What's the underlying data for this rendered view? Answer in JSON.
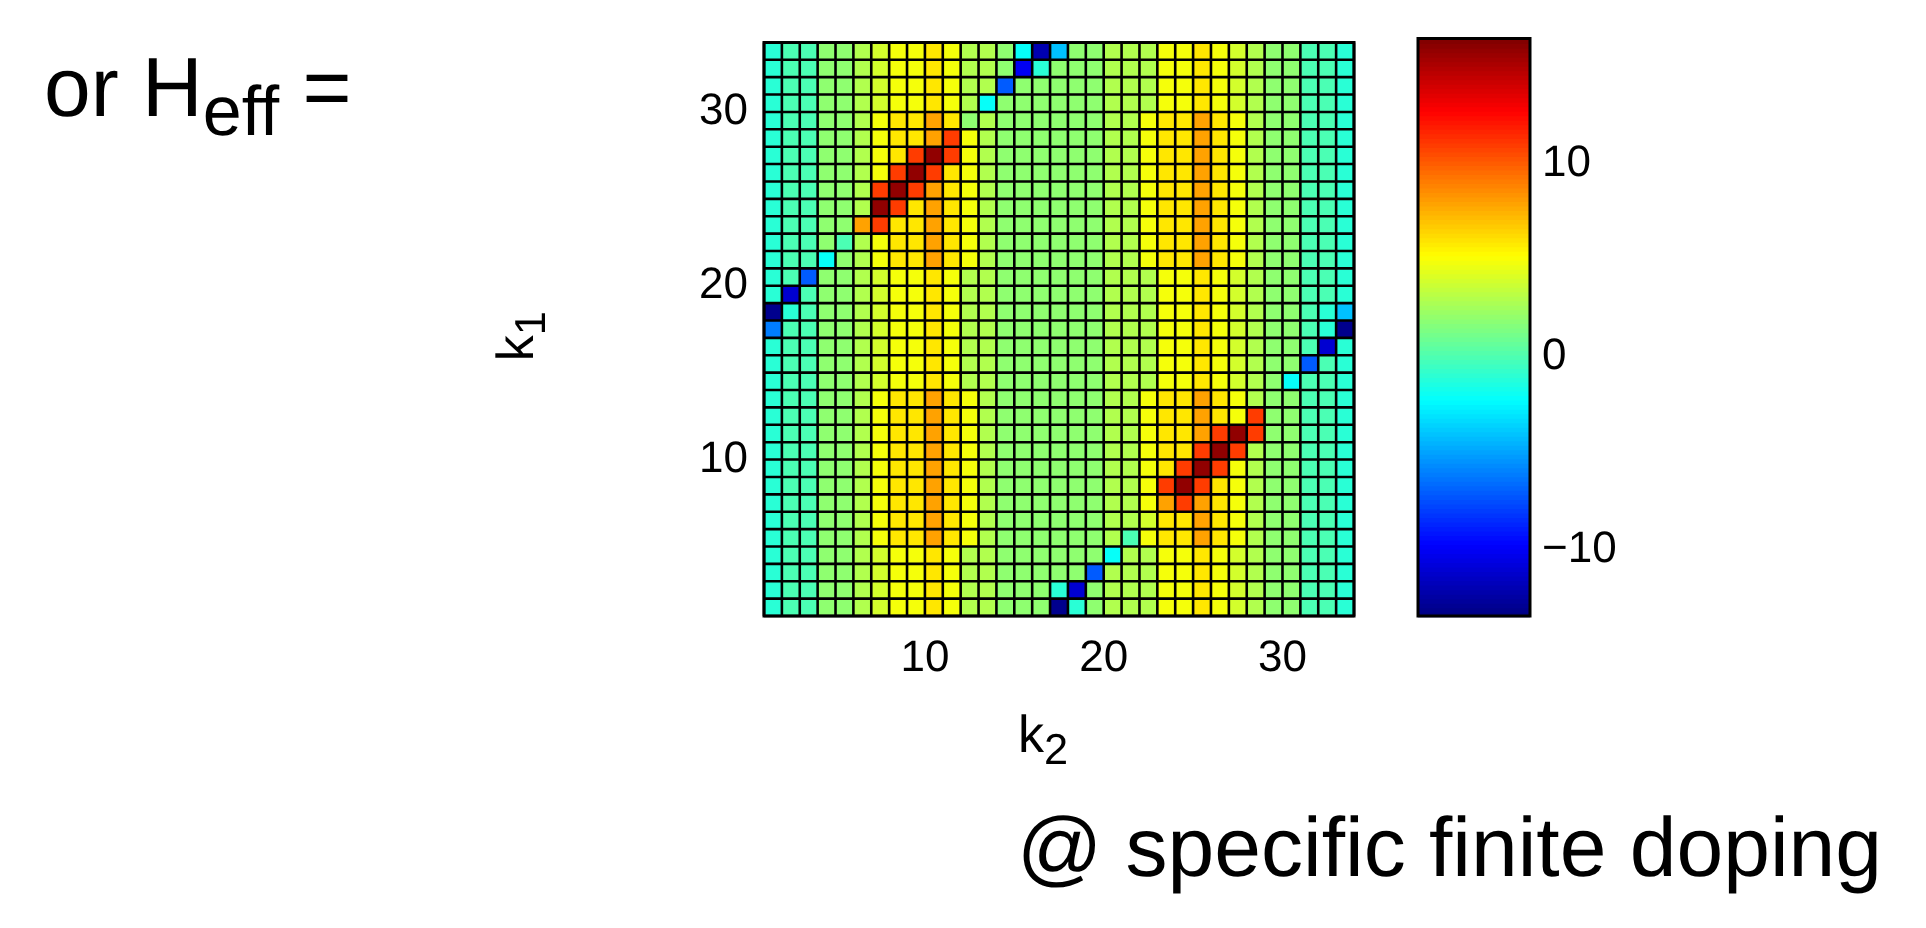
{
  "chart_data": {
    "type": "heatmap",
    "xlabel": "k$_{2}$",
    "ylabel": "k$_{1}$",
    "annotations": [
      "or H$_{eff}$ =",
      "@ specific finite doping"
    ],
    "grid": true,
    "xlim": [
      1,
      34
    ],
    "ylim": [
      1,
      34
    ],
    "xticks": [
      10,
      20,
      30
    ],
    "yticks": [
      10,
      20,
      30
    ],
    "clim": [
      -13.4,
      16.5
    ],
    "cticks": [
      {
        "value": -10,
        "label": "−10"
      },
      0,
      10
    ],
    "cells": [
      [
        -1,
        0,
        0,
        2,
        2,
        3,
        4,
        5,
        5,
        6,
        5,
        3,
        3,
        2,
        -2,
        -12,
        -4,
        2,
        2,
        3,
        3,
        3,
        5,
        5,
        6,
        5,
        4,
        3,
        2,
        2,
        0,
        0,
        -1
      ],
      [
        -1,
        0,
        0,
        2,
        2,
        3,
        4,
        5,
        5,
        6,
        5,
        3,
        3,
        2,
        -10,
        -1,
        2,
        2,
        2,
        3,
        3,
        3,
        5,
        5,
        6,
        5,
        4,
        3,
        2,
        2,
        0,
        0,
        -1
      ],
      [
        -1,
        0,
        0,
        2,
        2,
        3,
        4,
        5,
        5,
        6,
        5,
        3,
        3,
        -7,
        2,
        2,
        2,
        2,
        2,
        3,
        3,
        3,
        5,
        5,
        6,
        5,
        4,
        3,
        2,
        2,
        0,
        0,
        -1
      ],
      [
        -1,
        0,
        0,
        2,
        2,
        3,
        4,
        5,
        5,
        6,
        5,
        3,
        -2,
        2,
        2,
        2,
        2,
        2,
        2,
        3,
        3,
        3,
        5,
        5,
        6,
        5,
        4,
        3,
        2,
        2,
        0,
        0,
        -1
      ],
      [
        -1,
        0,
        0,
        2,
        2,
        3,
        5,
        6,
        6,
        8,
        6,
        2,
        3,
        2,
        2,
        2,
        2,
        2,
        2,
        3,
        3,
        5,
        6,
        6,
        8,
        6,
        5,
        3,
        2,
        2,
        0,
        0,
        -1
      ],
      [
        -1,
        0,
        0,
        2,
        2,
        3,
        5,
        6,
        6,
        8,
        11,
        5,
        3,
        2,
        2,
        2,
        2,
        2,
        2,
        3,
        3,
        5,
        6,
        6,
        8,
        6,
        5,
        3,
        2,
        2,
        0,
        0,
        -1
      ],
      [
        -1,
        0,
        0,
        2,
        2,
        3,
        5,
        6,
        11,
        16,
        11,
        5,
        3,
        2,
        2,
        2,
        2,
        2,
        2,
        3,
        3,
        5,
        6,
        6,
        8,
        6,
        5,
        3,
        2,
        2,
        0,
        0,
        -1
      ],
      [
        -1,
        0,
        0,
        2,
        2,
        3,
        5,
        11,
        16,
        11,
        6,
        5,
        3,
        2,
        2,
        2,
        2,
        2,
        2,
        3,
        3,
        5,
        6,
        6,
        8,
        6,
        5,
        3,
        2,
        2,
        0,
        0,
        -1
      ],
      [
        -1,
        0,
        0,
        2,
        2,
        3,
        11,
        16,
        11,
        8,
        6,
        5,
        3,
        2,
        2,
        2,
        2,
        2,
        2,
        3,
        3,
        5,
        6,
        6,
        8,
        6,
        5,
        3,
        2,
        2,
        0,
        0,
        -1
      ],
      [
        -1,
        0,
        0,
        2,
        2,
        3,
        16,
        11,
        6,
        8,
        6,
        5,
        3,
        2,
        2,
        2,
        2,
        2,
        2,
        3,
        3,
        5,
        6,
        6,
        8,
        6,
        5,
        3,
        2,
        2,
        0,
        0,
        -1
      ],
      [
        -1,
        0,
        0,
        2,
        2,
        8,
        11,
        6,
        6,
        8,
        6,
        5,
        3,
        2,
        2,
        2,
        2,
        2,
        2,
        3,
        3,
        5,
        6,
        6,
        8,
        6,
        5,
        3,
        2,
        2,
        0,
        0,
        -1
      ],
      [
        -1,
        0,
        0,
        2,
        0,
        3,
        5,
        6,
        6,
        8,
        6,
        5,
        3,
        2,
        2,
        2,
        2,
        2,
        2,
        3,
        3,
        5,
        6,
        6,
        8,
        6,
        5,
        3,
        2,
        2,
        0,
        0,
        -1
      ],
      [
        -1,
        0,
        0,
        -2,
        2,
        3,
        5,
        6,
        6,
        8,
        6,
        5,
        3,
        2,
        2,
        2,
        2,
        2,
        2,
        3,
        3,
        5,
        6,
        6,
        8,
        6,
        5,
        3,
        2,
        2,
        0,
        0,
        -1
      ],
      [
        -1,
        0,
        -7,
        2,
        2,
        3,
        4,
        5,
        5,
        6,
        5,
        3,
        3,
        2,
        2,
        2,
        2,
        2,
        2,
        3,
        3,
        3,
        5,
        5,
        6,
        5,
        4,
        3,
        2,
        2,
        0,
        0,
        -1
      ],
      [
        -1,
        -11,
        0,
        2,
        2,
        3,
        4,
        5,
        5,
        6,
        5,
        3,
        3,
        2,
        2,
        2,
        2,
        2,
        2,
        3,
        3,
        3,
        5,
        5,
        6,
        5,
        4,
        3,
        2,
        2,
        0,
        0,
        -1
      ],
      [
        -13,
        -1,
        0,
        2,
        2,
        3,
        4,
        5,
        5,
        6,
        5,
        3,
        3,
        2,
        2,
        2,
        2,
        2,
        2,
        3,
        3,
        3,
        5,
        5,
        6,
        5,
        4,
        3,
        2,
        2,
        0,
        -1,
        -4
      ],
      [
        -6,
        0,
        0,
        2,
        2,
        3,
        4,
        5,
        5,
        6,
        5,
        3,
        3,
        2,
        2,
        2,
        2,
        2,
        2,
        3,
        3,
        3,
        5,
        5,
        6,
        5,
        4,
        3,
        2,
        2,
        0,
        -1,
        -13
      ],
      [
        -1,
        0,
        0,
        2,
        2,
        3,
        4,
        5,
        5,
        6,
        5,
        3,
        3,
        2,
        2,
        2,
        2,
        2,
        2,
        3,
        3,
        3,
        5,
        5,
        6,
        5,
        4,
        3,
        2,
        2,
        0,
        -11,
        -1
      ],
      [
        -1,
        0,
        0,
        2,
        2,
        3,
        4,
        5,
        5,
        6,
        5,
        3,
        3,
        2,
        2,
        2,
        2,
        2,
        2,
        3,
        3,
        3,
        5,
        5,
        6,
        5,
        4,
        3,
        2,
        2,
        -7,
        0,
        -1
      ],
      [
        -1,
        0,
        0,
        2,
        2,
        3,
        4,
        5,
        5,
        6,
        5,
        3,
        3,
        2,
        2,
        2,
        2,
        2,
        2,
        3,
        3,
        3,
        5,
        5,
        6,
        5,
        4,
        3,
        2,
        -2,
        0,
        0,
        -1
      ],
      [
        -1,
        0,
        0,
        2,
        2,
        3,
        5,
        6,
        6,
        8,
        6,
        5,
        3,
        2,
        2,
        2,
        2,
        2,
        2,
        3,
        3,
        5,
        6,
        6,
        8,
        6,
        5,
        3,
        2,
        2,
        0,
        0,
        -1
      ],
      [
        -1,
        0,
        0,
        2,
        2,
        3,
        5,
        6,
        6,
        8,
        6,
        5,
        3,
        2,
        2,
        2,
        2,
        2,
        2,
        3,
        3,
        5,
        6,
        6,
        8,
        6,
        5,
        11,
        2,
        2,
        0,
        0,
        -1
      ],
      [
        -1,
        0,
        0,
        2,
        2,
        3,
        5,
        6,
        6,
        8,
        6,
        5,
        3,
        2,
        2,
        2,
        2,
        2,
        2,
        3,
        3,
        5,
        6,
        6,
        8,
        11,
        16,
        11,
        2,
        2,
        0,
        0,
        -1
      ],
      [
        -1,
        0,
        0,
        2,
        2,
        3,
        5,
        6,
        6,
        8,
        6,
        5,
        3,
        2,
        2,
        2,
        2,
        2,
        2,
        3,
        3,
        5,
        6,
        6,
        11,
        16,
        11,
        3,
        2,
        2,
        0,
        0,
        -1
      ],
      [
        -1,
        0,
        0,
        2,
        2,
        3,
        5,
        6,
        6,
        8,
        6,
        5,
        3,
        2,
        2,
        2,
        2,
        2,
        2,
        3,
        3,
        5,
        6,
        11,
        16,
        11,
        5,
        3,
        2,
        2,
        0,
        0,
        -1
      ],
      [
        -1,
        0,
        0,
        2,
        2,
        3,
        5,
        6,
        6,
        8,
        6,
        5,
        3,
        2,
        2,
        2,
        2,
        2,
        2,
        3,
        3,
        5,
        11,
        16,
        11,
        6,
        5,
        3,
        2,
        2,
        0,
        0,
        -1
      ],
      [
        -1,
        0,
        0,
        2,
        2,
        3,
        5,
        6,
        6,
        8,
        6,
        5,
        3,
        2,
        2,
        2,
        2,
        2,
        2,
        3,
        3,
        5,
        8,
        11,
        8,
        6,
        5,
        3,
        2,
        2,
        0,
        0,
        -1
      ],
      [
        -1,
        0,
        0,
        2,
        2,
        3,
        5,
        6,
        6,
        8,
        6,
        5,
        3,
        2,
        2,
        2,
        2,
        2,
        2,
        3,
        3,
        4,
        6,
        6,
        8,
        6,
        5,
        3,
        2,
        2,
        0,
        0,
        -1
      ],
      [
        -1,
        0,
        0,
        2,
        2,
        3,
        5,
        6,
        6,
        8,
        6,
        5,
        3,
        2,
        2,
        2,
        2,
        2,
        2,
        3,
        0,
        5,
        6,
        6,
        8,
        6,
        5,
        3,
        2,
        2,
        0,
        0,
        -1
      ],
      [
        -1,
        0,
        0,
        2,
        2,
        3,
        4,
        5,
        5,
        6,
        5,
        3,
        3,
        2,
        2,
        2,
        2,
        2,
        2,
        -2,
        3,
        3,
        5,
        5,
        6,
        5,
        4,
        3,
        2,
        2,
        0,
        0,
        -1
      ],
      [
        -1,
        0,
        0,
        2,
        2,
        3,
        4,
        5,
        5,
        6,
        5,
        3,
        3,
        2,
        2,
        2,
        2,
        2,
        -7,
        3,
        3,
        3,
        5,
        5,
        6,
        5,
        4,
        3,
        2,
        2,
        0,
        0,
        -1
      ],
      [
        -1,
        0,
        0,
        2,
        2,
        3,
        4,
        5,
        5,
        6,
        5,
        3,
        3,
        2,
        2,
        2,
        -1,
        -11,
        2,
        3,
        3,
        3,
        5,
        5,
        6,
        5,
        4,
        3,
        2,
        2,
        0,
        0,
        -1
      ],
      [
        -1,
        0,
        0,
        2,
        2,
        3,
        4,
        5,
        5,
        6,
        5,
        3,
        3,
        2,
        2,
        2,
        -13,
        -1,
        2,
        3,
        3,
        3,
        5,
        5,
        6,
        5,
        4,
        3,
        2,
        2,
        0,
        0,
        -1
      ]
    ]
  }
}
